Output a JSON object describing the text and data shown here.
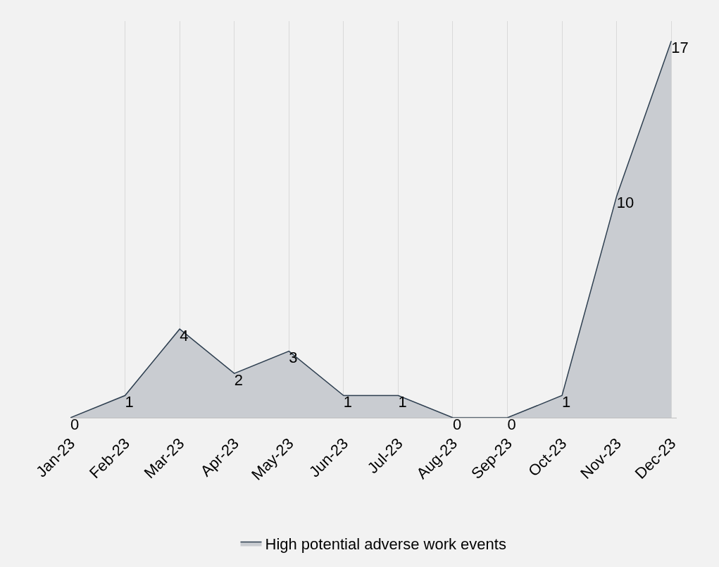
{
  "chart_data": {
    "type": "area",
    "categories": [
      "Jan-23",
      "Feb-23",
      "Mar-23",
      "Apr-23",
      "May-23",
      "Jun-23",
      "Jul-23",
      "Aug-23",
      "Sep-23",
      "Oct-23",
      "Nov-23",
      "Dec-23"
    ],
    "series": [
      {
        "name": "High potential adverse work events",
        "color": "#c9ccd1",
        "values": [
          0,
          1,
          4,
          2,
          3,
          1,
          1,
          0,
          0,
          1,
          10,
          17
        ]
      }
    ],
    "data_labels": true,
    "grid": "x",
    "legend": "bottom",
    "tick_labels": "x"
  }
}
